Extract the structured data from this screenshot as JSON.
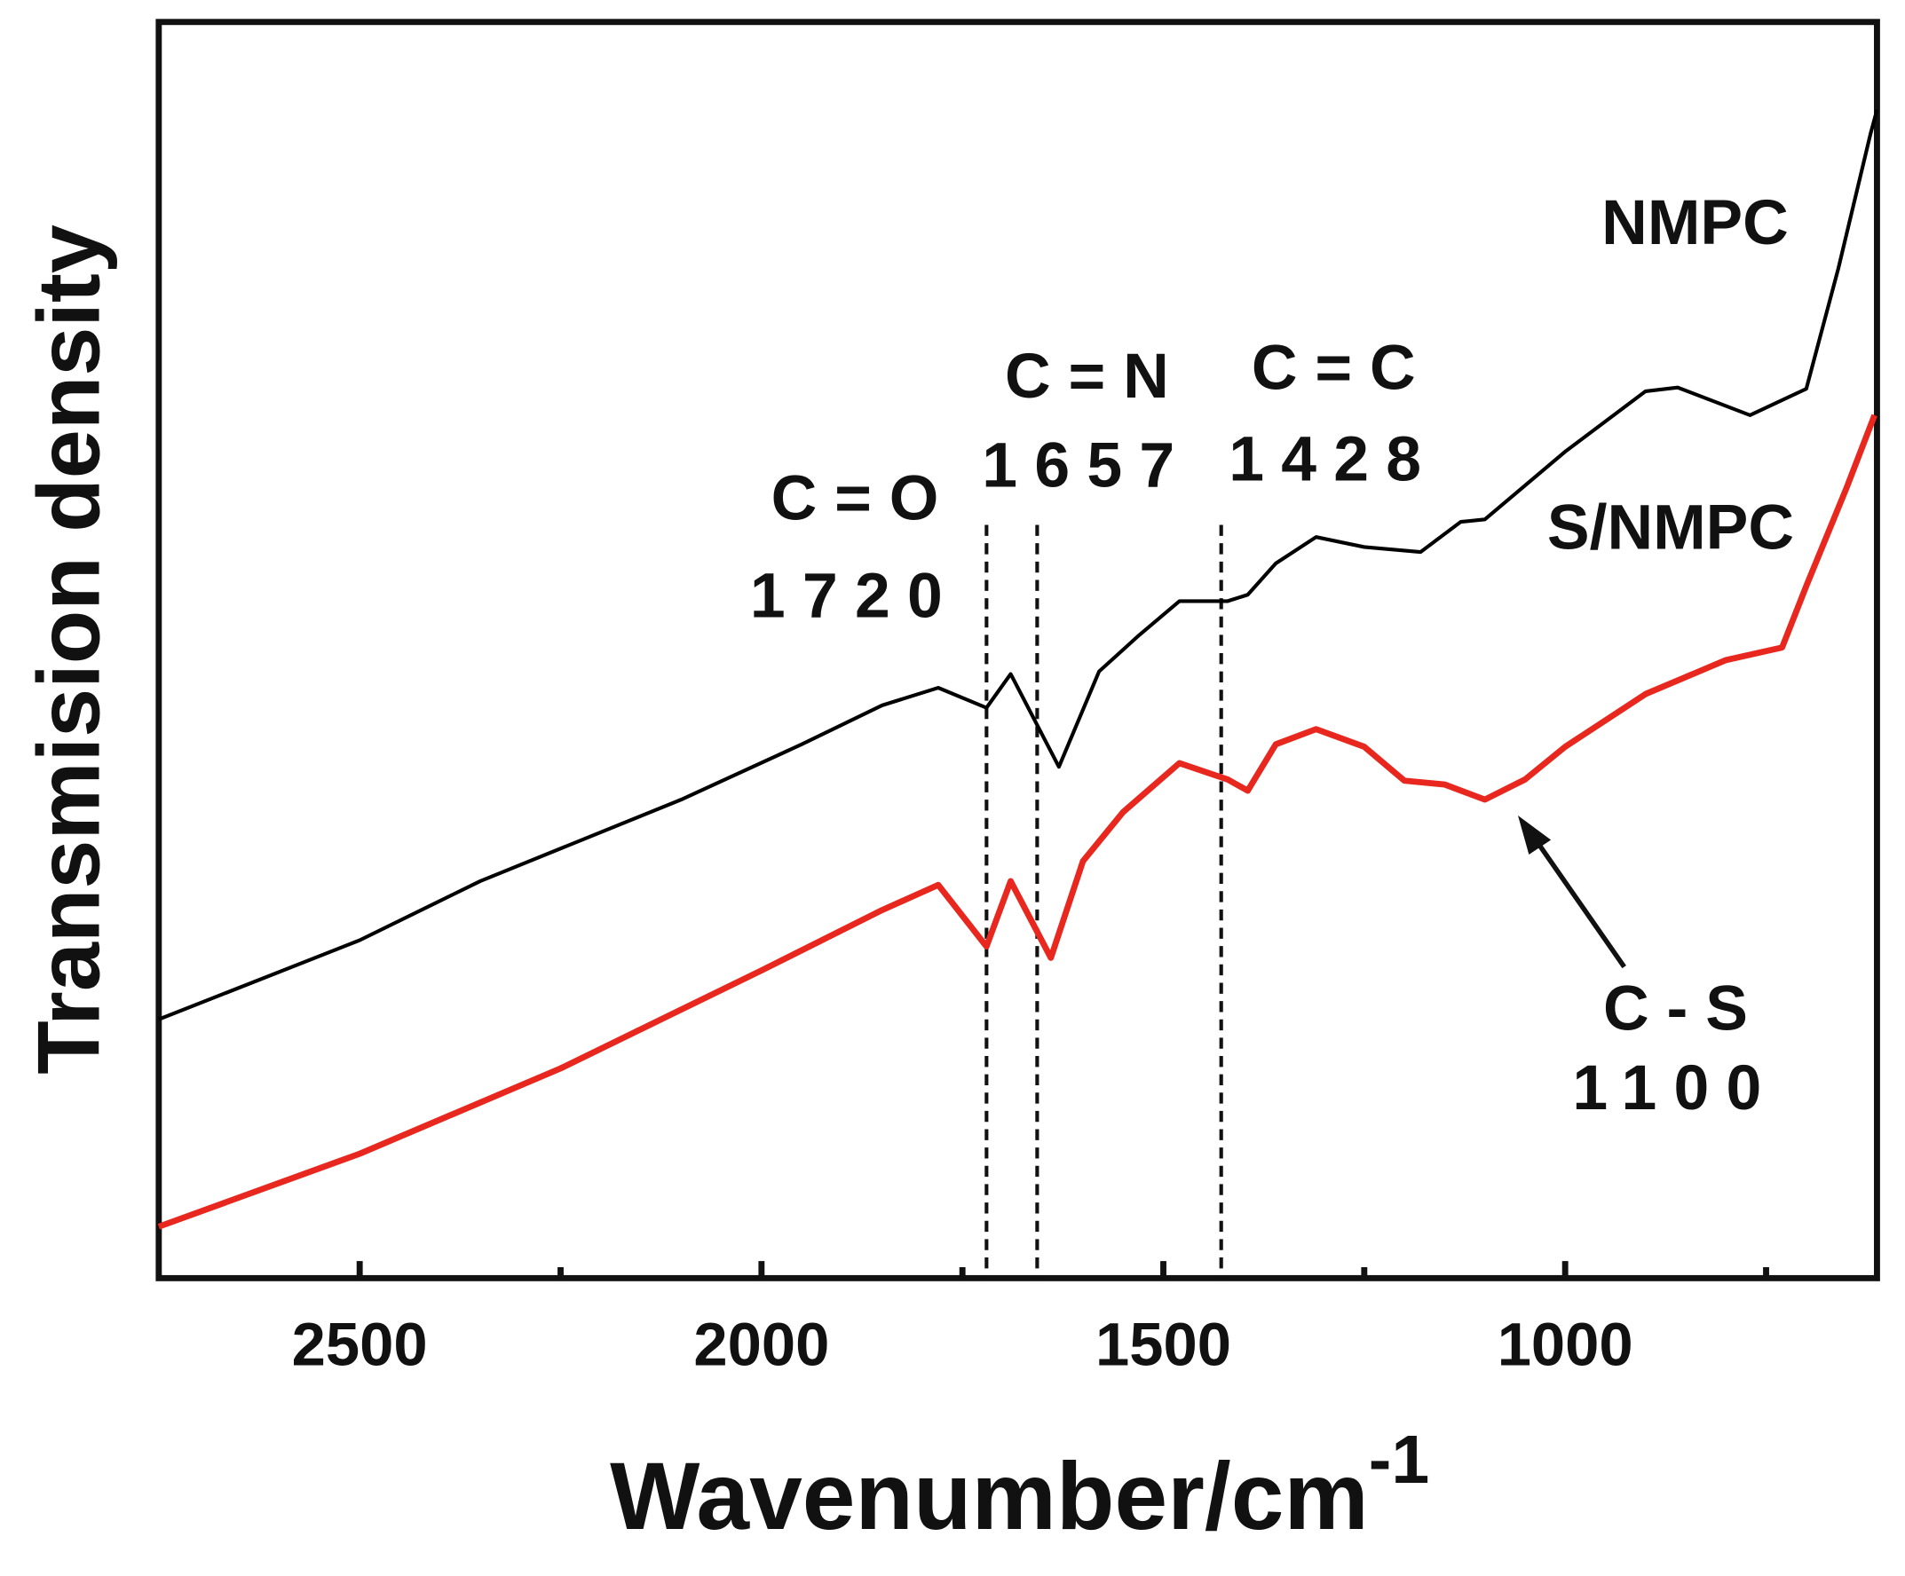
{
  "chart_data": {
    "type": "line",
    "x_label": "Wavenumber/cm",
    "x_label_sup": "-1",
    "y_label": "Transmision density",
    "xlim": [
      2750,
      612
    ],
    "ylim": [
      0,
      100
    ],
    "xticks": [
      2500,
      2000,
      1500,
      1000
    ],
    "xminor_ticks": [
      2250,
      1750,
      1250,
      750
    ],
    "series": [
      {
        "name": "NMPC",
        "color": "#000000",
        "x": [
          2750,
          2500,
          2350,
          2100,
          1950,
          1850,
          1780,
          1720,
          1690,
          1630,
          1580,
          1530,
          1480,
          1420,
          1395,
          1360,
          1310,
          1250,
          1180,
          1130,
          1100,
          1000,
          900,
          860,
          770,
          700,
          660,
          620,
          612
        ],
        "values": [
          20.6,
          26.9,
          31.6,
          38.1,
          42.5,
          45.6,
          47.0,
          45.4,
          48.1,
          40.7,
          48.3,
          51.2,
          53.9,
          53.9,
          54.4,
          56.9,
          59.0,
          58.2,
          57.8,
          60.2,
          60.4,
          65.8,
          70.6,
          70.9,
          68.7,
          70.8,
          80.4,
          91.1,
          93.0
        ]
      },
      {
        "name": "S/NMPC",
        "color": "#e8281e",
        "x": [
          2750,
          2500,
          2250,
          2000,
          1850,
          1780,
          1720,
          1690,
          1640,
          1600,
          1550,
          1480,
          1420,
          1395,
          1360,
          1310,
          1250,
          1200,
          1150,
          1100,
          1050,
          1000,
          900,
          800,
          730,
          700,
          650,
          615
        ],
        "values": [
          4.1,
          9.9,
          16.7,
          24.5,
          29.3,
          31.3,
          26.4,
          31.6,
          25.5,
          33.2,
          37.1,
          41.0,
          39.7,
          38.8,
          42.5,
          43.7,
          42.3,
          39.6,
          39.3,
          38.1,
          39.7,
          42.3,
          46.5,
          49.2,
          50.2,
          55.1,
          62.9,
          68.7
        ]
      }
    ],
    "annotations": [
      {
        "label": "C = O",
        "value": 1720
      },
      {
        "label": "C = N",
        "value": 1657
      },
      {
        "label": "C = C",
        "value": 1428
      },
      {
        "label": "C - S",
        "value": 1100
      }
    ]
  }
}
